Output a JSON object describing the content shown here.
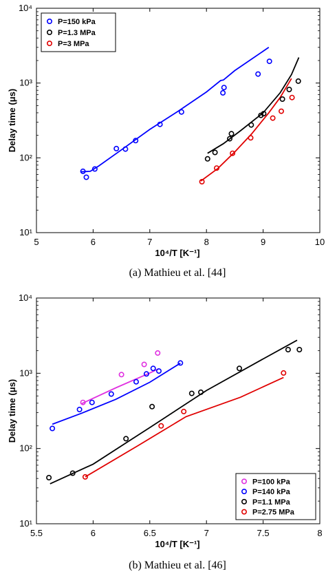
{
  "chart_data": [
    {
      "type": "scatter",
      "caption": "(a) Mathieu et al. [44]",
      "xlabel": "10⁴/T [K⁻¹]",
      "ylabel": "Delay time (μs)",
      "xlim": [
        5,
        10
      ],
      "ylim": [
        10,
        10000
      ],
      "yscale": "log",
      "xticks": [
        "5",
        "6",
        "7",
        "8",
        "9",
        "10"
      ],
      "yticks": [
        "10¹",
        "10²",
        "10³",
        "10⁴"
      ],
      "grid": false,
      "legend_position": "top-left",
      "series": [
        {
          "name": "P=150 kPa",
          "color": "#0000ff",
          "points": [
            [
              5.82,
              66
            ],
            [
              5.88,
              55
            ],
            [
              6.03,
              71
            ],
            [
              6.41,
              133
            ],
            [
              6.57,
              131
            ],
            [
              6.75,
              170
            ],
            [
              7.18,
              280
            ],
            [
              7.56,
              410
            ],
            [
              8.29,
              740
            ],
            [
              8.31,
              870
            ],
            [
              8.91,
              1320
            ],
            [
              9.11,
              1950
            ]
          ],
          "line": [
            [
              5.78,
              65
            ],
            [
              5.95,
              66
            ],
            [
              6.1,
              78
            ],
            [
              6.5,
              128
            ],
            [
              7.0,
              240
            ],
            [
              7.5,
              420
            ],
            [
              8.0,
              760
            ],
            [
              8.25,
              1080
            ],
            [
              8.3,
              1100
            ],
            [
              8.5,
              1470
            ],
            [
              9.1,
              3000
            ]
          ]
        },
        {
          "name": "P=1.3 MPa",
          "color": "#000000",
          "points": [
            [
              8.02,
              97
            ],
            [
              8.15,
              118
            ],
            [
              8.41,
              180
            ],
            [
              8.44,
              210
            ],
            [
              8.79,
              275
            ],
            [
              8.96,
              370
            ],
            [
              9.01,
              390
            ],
            [
              9.34,
              610
            ],
            [
              9.46,
              820
            ],
            [
              9.62,
              1060
            ]
          ],
          "line": [
            [
              8.02,
              115
            ],
            [
              8.3,
              155
            ],
            [
              8.6,
              230
            ],
            [
              9.0,
              400
            ],
            [
              9.3,
              740
            ],
            [
              9.5,
              1300
            ],
            [
              9.63,
              2200
            ]
          ]
        },
        {
          "name": "P=3 MPa",
          "color": "#e00000",
          "points": [
            [
              7.92,
              48
            ],
            [
              8.18,
              73
            ],
            [
              8.46,
              115
            ],
            [
              8.78,
              185
            ],
            [
              9.17,
              340
            ],
            [
              9.32,
              420
            ],
            [
              9.51,
              640
            ]
          ],
          "line": [
            [
              7.9,
              49
            ],
            [
              8.2,
              72
            ],
            [
              8.5,
              120
            ],
            [
              8.8,
              210
            ],
            [
              9.1,
              400
            ],
            [
              9.3,
              640
            ],
            [
              9.5,
              1150
            ]
          ]
        }
      ]
    },
    {
      "type": "scatter",
      "caption": "(b) Mathieu et al. [46]",
      "xlabel": "10⁴/T [K⁻¹]",
      "ylabel": "Delay time (μs)",
      "xlim": [
        5.5,
        8
      ],
      "ylim": [
        10,
        10000
      ],
      "yscale": "log",
      "xticks": [
        "5.5",
        "6",
        "6.5",
        "7",
        "7.5",
        "8"
      ],
      "yticks": [
        "10¹",
        "10²",
        "10³",
        "10⁴"
      ],
      "grid": false,
      "legend_position": "bottom-right",
      "series": [
        {
          "name": "P=100 kPa",
          "color": "#e030e0",
          "points": [
            [
              5.91,
              410
            ],
            [
              6.25,
              960
            ],
            [
              6.45,
              1310
            ],
            [
              6.57,
              1860
            ]
          ],
          "line": [
            [
              5.9,
              395
            ],
            [
              6.2,
              640
            ],
            [
              6.5,
              1010
            ],
            [
              6.58,
              1150
            ]
          ]
        },
        {
          "name": "P=140 kPa",
          "color": "#0000ff",
          "points": [
            [
              5.64,
              185
            ],
            [
              5.88,
              330
            ],
            [
              5.99,
              410
            ],
            [
              6.16,
              530
            ],
            [
              6.38,
              770
            ],
            [
              6.47,
              980
            ],
            [
              6.53,
              1160
            ],
            [
              6.58,
              1070
            ],
            [
              6.77,
              1370
            ]
          ],
          "line": [
            [
              5.64,
              210
            ],
            [
              5.9,
              295
            ],
            [
              6.2,
              450
            ],
            [
              6.5,
              760
            ],
            [
              6.77,
              1360
            ]
          ]
        },
        {
          "name": "P=1.1 MPa",
          "color": "#000000",
          "points": [
            [
              5.61,
              41
            ],
            [
              5.82,
              47
            ],
            [
              6.29,
              135
            ],
            [
              6.52,
              360
            ],
            [
              6.87,
              540
            ],
            [
              6.95,
              560
            ],
            [
              7.29,
              1160
            ],
            [
              7.72,
              2060
            ],
            [
              7.82,
              2060
            ]
          ],
          "line": [
            [
              5.62,
              34
            ],
            [
              6.0,
              62
            ],
            [
              6.5,
              190
            ],
            [
              7.0,
              590
            ],
            [
              7.5,
              1550
            ],
            [
              7.8,
              2750
            ]
          ]
        },
        {
          "name": "P=2.75 MPa",
          "color": "#e00000",
          "points": [
            [
              5.93,
              42
            ],
            [
              6.6,
              200
            ],
            [
              6.8,
              310
            ],
            [
              7.68,
              1010
            ]
          ],
          "line": [
            [
              5.93,
              42
            ],
            [
              6.4,
              110
            ],
            [
              6.82,
              265
            ],
            [
              7.3,
              480
            ],
            [
              7.68,
              880
            ]
          ]
        }
      ]
    }
  ]
}
